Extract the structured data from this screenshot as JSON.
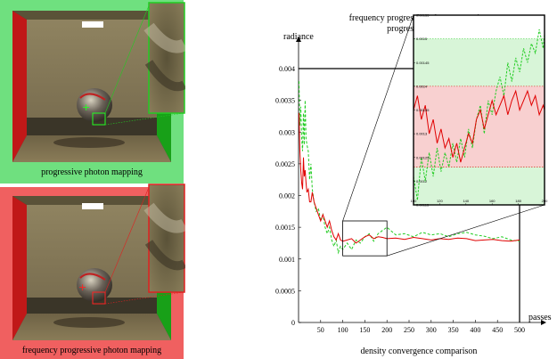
{
  "left_panels": {
    "top_caption": "progressive photon mapping",
    "bottom_caption": "frequency progressive photon mapping",
    "top_color": "#6fe07f",
    "bottom_color": "#f06060"
  },
  "chart_data": {
    "type": "line",
    "title": "",
    "caption": "density convergence comparison",
    "ylabel": "radiance",
    "xlabel": "passes",
    "xlim": [
      0,
      500
    ],
    "ylim": [
      0,
      0.004
    ],
    "xticks": [
      "50",
      "100",
      "150",
      "200",
      "250",
      "300",
      "350",
      "400",
      "450",
      "500"
    ],
    "xtick_values": [
      50,
      100,
      150,
      200,
      250,
      300,
      350,
      400,
      450,
      500
    ],
    "yticks": [
      "0",
      "0.0005",
      "0.001",
      "0.0015",
      "0.002",
      "0.0025",
      "0.003",
      "0.0035",
      "0.004"
    ],
    "ytick_values": [
      0,
      0.0005,
      0.001,
      0.0015,
      0.002,
      0.0025,
      0.003,
      0.0035,
      0.004
    ],
    "legend_position": "top-right",
    "series": [
      {
        "name": "frequency progressive photon mapping",
        "color": "#e00000",
        "style": "solid",
        "x": [
          1,
          3,
          5,
          7,
          9,
          11,
          13,
          15,
          17,
          19,
          22,
          25,
          28,
          31,
          35,
          40,
          45,
          50,
          55,
          60,
          65,
          70,
          75,
          80,
          85,
          90,
          95,
          100,
          110,
          120,
          130,
          140,
          150,
          160,
          170,
          180,
          190,
          200,
          220,
          240,
          260,
          280,
          300,
          320,
          340,
          360,
          380,
          400,
          420,
          440,
          460,
          480,
          500
        ],
        "y": [
          0.0033,
          0.0027,
          0.0024,
          0.0022,
          0.0021,
          0.0026,
          0.0023,
          0.0024,
          0.0022,
          0.00205,
          0.0021,
          0.0019,
          0.0019,
          0.00205,
          0.0019,
          0.0018,
          0.0017,
          0.0016,
          0.0017,
          0.0016,
          0.0015,
          0.0016,
          0.00145,
          0.00135,
          0.0013,
          0.0014,
          0.0013,
          0.00128,
          0.0013,
          0.00132,
          0.00125,
          0.0013,
          0.00135,
          0.00138,
          0.00132,
          0.00135,
          0.00134,
          0.00132,
          0.00133,
          0.00131,
          0.00134,
          0.00132,
          0.0013,
          0.00132,
          0.00131,
          0.00133,
          0.00132,
          0.00129,
          0.0013,
          0.00131,
          0.00129,
          0.00128,
          0.0013
        ]
      },
      {
        "name": "progressive photon mapping",
        "color": "#22cc22",
        "style": "dashed",
        "x": [
          1,
          3,
          5,
          7,
          9,
          11,
          13,
          15,
          17,
          19,
          22,
          25,
          28,
          31,
          35,
          40,
          45,
          50,
          55,
          60,
          65,
          70,
          75,
          80,
          85,
          90,
          95,
          100,
          110,
          120,
          130,
          140,
          150,
          160,
          170,
          180,
          190,
          200,
          220,
          240,
          260,
          280,
          300,
          320,
          340,
          360,
          380,
          400,
          420,
          440,
          460,
          480,
          500
        ],
        "y": [
          0.0038,
          0.0031,
          0.0034,
          0.0029,
          0.0027,
          0.0033,
          0.0028,
          0.0035,
          0.0029,
          0.0028,
          0.0027,
          0.00225,
          0.0025,
          0.0021,
          0.0019,
          0.00175,
          0.0018,
          0.0016,
          0.0017,
          0.0015,
          0.0014,
          0.0015,
          0.0013,
          0.0012,
          0.0013,
          0.0011,
          0.0012,
          0.00115,
          0.00125,
          0.00115,
          0.0013,
          0.00125,
          0.00135,
          0.0014,
          0.00128,
          0.0014,
          0.00145,
          0.0015,
          0.00138,
          0.0014,
          0.00135,
          0.00142,
          0.00138,
          0.0014,
          0.00135,
          0.0014,
          0.00142,
          0.00138,
          0.00136,
          0.00132,
          0.00135,
          0.0013,
          0.00128
        ]
      }
    ],
    "inset": {
      "xlim": [
        100,
        200
      ],
      "ylim": [
        0.00115,
        0.00155
      ],
      "xticks": [
        "100",
        "120",
        "140",
        "160",
        "180",
        "200"
      ],
      "xtick_values": [
        100,
        120,
        140,
        160,
        180,
        200
      ],
      "yticks": [
        "0.00155",
        "0.0015",
        "0.00145",
        "0.0014",
        "0.00135",
        "0.0013",
        "0.00125",
        "0.0012",
        "0.00115"
      ],
      "ytick_values": [
        0.00155,
        0.0015,
        0.00145,
        0.0014,
        0.00135,
        0.0013,
        0.00125,
        0.0012,
        0.00115
      ],
      "green_band": [
        0.00115,
        0.0015
      ],
      "red_band": [
        0.00123,
        0.0014
      ],
      "series": [
        {
          "color": "#e00000",
          "style": "solid",
          "x": [
            100,
            103,
            106,
            109,
            112,
            115,
            118,
            121,
            124,
            127,
            130,
            133,
            136,
            139,
            142,
            145,
            148,
            151,
            154,
            157,
            160,
            163,
            166,
            169,
            172,
            175,
            178,
            181,
            184,
            187,
            190,
            193,
            196,
            199,
            200
          ],
          "y": [
            0.00135,
            0.00138,
            0.00133,
            0.00136,
            0.0013,
            0.00133,
            0.00128,
            0.00131,
            0.00127,
            0.00129,
            0.00125,
            0.00128,
            0.00124,
            0.00127,
            0.0013,
            0.00128,
            0.00133,
            0.00135,
            0.00131,
            0.00134,
            0.00137,
            0.00134,
            0.00136,
            0.00138,
            0.00134,
            0.00137,
            0.00139,
            0.00135,
            0.00137,
            0.00139,
            0.00136,
            0.00138,
            0.00134,
            0.00136,
            0.00135
          ]
        },
        {
          "color": "#22cc22",
          "style": "dashed",
          "x": [
            100,
            103,
            106,
            109,
            112,
            115,
            118,
            121,
            124,
            127,
            130,
            133,
            136,
            139,
            142,
            145,
            148,
            151,
            154,
            157,
            160,
            163,
            166,
            169,
            172,
            175,
            178,
            181,
            184,
            187,
            190,
            193,
            196,
            199,
            200
          ],
          "y": [
            0.00121,
            0.00116,
            0.00125,
            0.0012,
            0.00126,
            0.00121,
            0.00127,
            0.00122,
            0.00126,
            0.00123,
            0.00128,
            0.00124,
            0.00129,
            0.00125,
            0.00131,
            0.00127,
            0.00133,
            0.00136,
            0.0013,
            0.00137,
            0.00134,
            0.00139,
            0.00142,
            0.00138,
            0.00145,
            0.00141,
            0.00146,
            0.00143,
            0.00148,
            0.00145,
            0.00149,
            0.00147,
            0.00152,
            0.00148,
            0.00151
          ]
        }
      ]
    }
  }
}
